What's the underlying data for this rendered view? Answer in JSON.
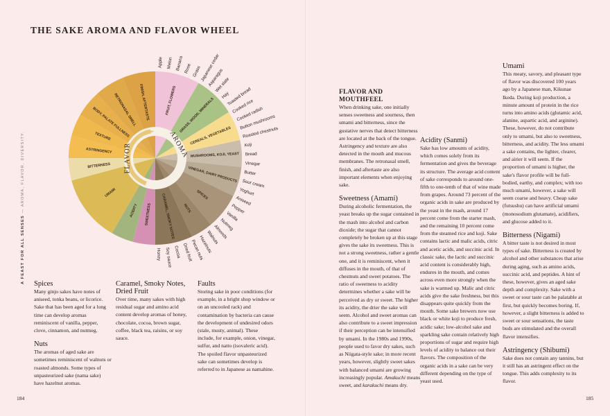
{
  "title": "THE SAKE AROMA AND FLAVOR WHEEL",
  "side_caption": {
    "bold": "A FEAST FOR ALL SENSES",
    "light": "— AROMA, FLAVOR, DIVERSITY."
  },
  "page_numbers": {
    "left": "184",
    "right": "185"
  },
  "wheel": {
    "flavor_label": "FLAVOR",
    "aroma_label": "AROMA",
    "flavor_segments": [
      {
        "name": "SWEETNESS",
        "color": "#d591b4"
      },
      {
        "name": "ACIDITY",
        "color": "#a3b57f"
      },
      {
        "name": "UMAMI",
        "color": "#dcbb57"
      },
      {
        "name": "BITTERNESS",
        "color": "#ecdcaa"
      },
      {
        "name": "ASTRINGENCY",
        "color": "#f3bd52"
      },
      {
        "name": "TEXTURE",
        "color": "#f0b94e"
      },
      {
        "name": "BODY, PALATE FULLNESS",
        "color": "#e8b04c"
      },
      {
        "name": "RETRONASAL SMELL",
        "color": "#e0a94a"
      },
      {
        "name": "FINISH, AFTERTASTE",
        "color": "#dca245"
      }
    ],
    "aroma_segments": [
      {
        "name": "FRUIT, FLOWERS",
        "color": "#f0c3d9"
      },
      {
        "name": "GRASS, WOOD, MINERALS",
        "color": "#a9c286"
      },
      {
        "name": "CEREALS, VEGETABLES",
        "color": "#f7dc8f"
      },
      {
        "name": "MUSHROOMS, KOJI, YEAST",
        "color": "#cabdab"
      },
      {
        "name": "VINEGAR, DAIRY PRODUCTS",
        "color": "#baab95"
      },
      {
        "name": "SPICES",
        "color": "#a99479"
      },
      {
        "name": "NUTS",
        "color": "#9c8669"
      },
      {
        "name": "CARAMEL, SMOKY NOTES",
        "color": "#8b7659"
      }
    ],
    "descriptors": [
      "Apple",
      "Melon",
      "Banana",
      "Rose",
      "Grass",
      "Japanese cedar",
      "Asparagus",
      "Wet slate",
      "Hay",
      "Toasted bread",
      "Cooked rice",
      "Cooked radish",
      "Button mushrooms",
      "Roasted chestnuts",
      "Koji",
      "Bread",
      "Vinegar",
      "Butter",
      "Sour cream",
      "Yoghurt",
      "Aniseed",
      "Pepper",
      "Vanilla",
      "Nutmeg",
      "Almonds",
      "Walnuts",
      "Hazelnuts",
      "Pecan nuts",
      "Dried fruit",
      "Cocoa",
      "Soy sauce",
      "Honey"
    ]
  },
  "left_sections": {
    "spices": {
      "heading": "Spices",
      "body": "Many ginjo sakes have notes of aniseed, tonka beans, or licorice. Sake that has been aged for a long time can develop aromas reminiscent of vanilla, pepper, clove, cinnamon, and nutmeg."
    },
    "nuts": {
      "heading": "Nuts",
      "body": "The aromas of aged sake are sometimes reminiscent of walnuts or roasted almonds. Some types of unpasteurized sake (nama sake) have hazelnut aromas."
    },
    "caramel": {
      "heading": "Caramel, Smoky Notes, Dried Fruit",
      "body": "Over time, many sakes with high residual sugar and amino acid content develop aromas of honey, chocolate, cocoa, brown sugar, coffee, black tea, raisins, or soy sauce."
    },
    "faults": {
      "heading": "Faults",
      "body": "Storing sake in poor conditions (for example, in a bright shop window or on an uncooled rack) and contamination by bacteria can cause the development of undesired odors (stale, musty, animal). These include, for example, onion, vinegar, sulfur, and natto (isovaleric acid). The spoiled flavor unpasteurized sake can sometimes develop is referred to in Japanese as namahine."
    }
  },
  "right_sections": {
    "mouthfeel": {
      "heading": "FLAVOR AND MOUTHFEEL",
      "body": "When drinking sake, one initially senses sweetness and sourness, then umami and bitterness, since the gustative nerves that detect bitterness are located at the back of the tongue. Astringency and texture are also detected in the mouth and mucous membranes. The retronasal smell, finish, and aftertaste are also important elements when enjoying sake."
    },
    "sweetness": {
      "heading": "Sweetness (Amami)",
      "body": "During alcoholic fermentation, the yeast breaks up the sugar contained in the mash into alcohol and carbon dioxide; the sugar that cannot completely be broken up at this stage gives the sake its sweetness. This is not a strong sweetness, rather a gentle one, and it is reminiscent, when it diffuses in the mouth, of that of chestnuts and sweet potatoes. The ratio of sweetness to acidity determines whether a sake will be perceived as dry or sweet. The higher its acidity, the drier the sake will seem. Alcohol and sweet aromas can also contribute to a sweet impression if their perception can be intensified by umami. In the 1980s and 1990s, people used to favor dry sakes, such as Niigata-style sake; in more recent years, however, slightly sweet sakes with balanced umami are growing increasingly popular. ",
      "term1": "Amakuchi",
      "mid": " means sweet, and ",
      "term2": "karakuchi",
      "end": " means dry."
    },
    "acidity": {
      "heading": "Acidity (Sanmi)",
      "body": "Sake has low amounts of acidity, which comes solely from its fermentation and gives the beverage its structure. The average acid content of sake corresponds to around one-fifth to one-tenth of that of wine made from grapes. Around 73 percent of the organic acids in sake are produced by the yeast in the mash, around 17 percent come from the starter mash, and the remaining 10 percent come from the steamed rice and koji. Sake contains lactic and malic acids, citric and acetic acids, and succinic acid. In classic sake, the lactic and succinic acid content is considerably high, endures in the mouth, and comes across even more strongly when the sake is warmed up. Malic and citric acids give the sake freshness, but this disappears quite quickly from the mouth. Some sake brewers now use black or white koji to produce fresh, acidic sake; low-alcohol sake and sparkling sake contain relatively high proportions of sugar and require high levels of acidity to balance out their flavors. The composition of the organic acids in a sake can be very different depending on the type of yeast used."
    },
    "umami": {
      "heading": "Umami",
      "body": "This meaty, savory, and pleasant type of flavor was discovered 100 years ago by a Japanese man, Kikunae Ikeda. During koji production, a minute amount of protein in the rice turns into amino acids (glutamic acid, alanine, aspartic acid, and arginine). These, however, do not contribute only to umami, but also to sweetness, bitterness, and acidity. The less umami a sake contains, the lighter, clearer, and airier it will seem. If the proportion of umami is higher, the sake's flavor profile will be full-bodied, earthy, and complex; with too much umami, however, a sake will seem coarse and heavy. Cheap sake (futsushu) can have artificial umami (monosodium glutamate), acidifiers, and glucose added to it."
    },
    "bitterness": {
      "heading": "Bitterness (Nigami)",
      "body": "A bitter taste is not desired in most types of sake. Bitterness is created by alcohol and other substances that arise during aging, such as amino acids, succinic acid, and peptides. A hint of these, however, gives an aged sake depth and complexity. Sake with a sweet or sour taste can be palatable at first, but quickly becomes boring. If, however, a slight bitterness is added to sweet or sour sensations, the taste buds are stimulated and the overall flavor intensifies."
    },
    "astringency": {
      "heading": "Astringency (Shibumi)",
      "body": "Sake does not contain any tannins, but it still has an astringent effect on the tongue. This adds complexity to its flavor."
    }
  }
}
